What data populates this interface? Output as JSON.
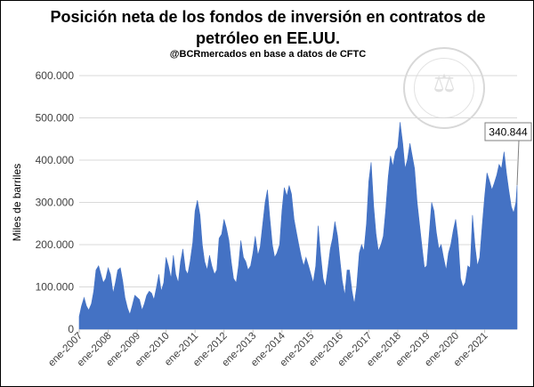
{
  "header": {
    "title_line1": "Posición neta de los fondos de inversión en contratos de",
    "title_line2": "petróleo en EE.UU.",
    "subtitle": "@BCRmercados  en base a datos de CFTC",
    "watermark_text": "BOLSA DE COMERCIO DE ROSARIO"
  },
  "colors": {
    "area": "#4472c4",
    "grid": "#d9d9d9",
    "text": "#404040",
    "callout_border": "#7f7f7f"
  },
  "chart_data": {
    "type": "area",
    "title": "Posición neta de los fondos de inversión en contratos de petróleo en EE.UU.",
    "subtitle": "@BCRmercados  en base a datos de CFTC",
    "ylabel": "Miles de barriles",
    "xlabel": "",
    "ylim": [
      0,
      600000
    ],
    "yticks": [
      0,
      100000,
      200000,
      300000,
      400000,
      500000,
      600000
    ],
    "ytick_labels": [
      "0",
      "100.000",
      "200.000",
      "300.000",
      "400.000",
      "500.000",
      "600.000"
    ],
    "xlim": [
      2007,
      2022.12
    ],
    "xticks": [
      2007,
      2008,
      2009,
      2010,
      2011,
      2012,
      2013,
      2014,
      2015,
      2016,
      2017,
      2018,
      2019,
      2020,
      2021
    ],
    "xtick_labels": [
      "ene-2007",
      "ene-2008",
      "ene-2009",
      "ene-2010",
      "ene-2011",
      "ene-2012",
      "ene-2013",
      "ene-2014",
      "ene-2015",
      "ene-2016",
      "ene-2017",
      "ene-2018",
      "ene-2019",
      "ene-2020",
      "ene-2021"
    ],
    "grid": true,
    "annotation": {
      "label": "340.844",
      "x": 2022.12,
      "y": 340844
    },
    "series": [
      {
        "x": [
          2007.0,
          2007.08,
          2007.17,
          2007.25,
          2007.33,
          2007.42,
          2007.5,
          2007.58,
          2007.67,
          2007.75,
          2007.83,
          2007.92,
          2008.0,
          2008.08,
          2008.17,
          2008.25,
          2008.33,
          2008.42,
          2008.5,
          2008.58,
          2008.67,
          2008.75,
          2008.83,
          2008.92,
          2009.0,
          2009.08,
          2009.17,
          2009.25,
          2009.33,
          2009.42,
          2009.5,
          2009.58,
          2009.67,
          2009.75,
          2009.83,
          2009.92,
          2010.0,
          2010.08,
          2010.17,
          2010.25,
          2010.33,
          2010.42,
          2010.5,
          2010.58,
          2010.67,
          2010.75,
          2010.83,
          2010.92,
          2011.0,
          2011.08,
          2011.17,
          2011.25,
          2011.33,
          2011.42,
          2011.5,
          2011.58,
          2011.67,
          2011.75,
          2011.83,
          2011.92,
          2012.0,
          2012.08,
          2012.17,
          2012.25,
          2012.33,
          2012.42,
          2012.5,
          2012.58,
          2012.67,
          2012.75,
          2012.83,
          2012.92,
          2013.0,
          2013.08,
          2013.17,
          2013.25,
          2013.33,
          2013.42,
          2013.5,
          2013.58,
          2013.67,
          2013.75,
          2013.83,
          2013.92,
          2014.0,
          2014.08,
          2014.17,
          2014.25,
          2014.33,
          2014.42,
          2014.5,
          2014.58,
          2014.67,
          2014.75,
          2014.83,
          2014.92,
          2015.0,
          2015.08,
          2015.17,
          2015.25,
          2015.33,
          2015.42,
          2015.5,
          2015.58,
          2015.67,
          2015.75,
          2015.83,
          2015.92,
          2016.0,
          2016.08,
          2016.17,
          2016.25,
          2016.33,
          2016.42,
          2016.5,
          2016.58,
          2016.67,
          2016.75,
          2016.83,
          2016.92,
          2017.0,
          2017.08,
          2017.17,
          2017.25,
          2017.33,
          2017.42,
          2017.5,
          2017.58,
          2017.67,
          2017.75,
          2017.83,
          2017.92,
          2018.0,
          2018.08,
          2018.17,
          2018.25,
          2018.33,
          2018.42,
          2018.5,
          2018.58,
          2018.67,
          2018.75,
          2018.83,
          2018.92,
          2019.0,
          2019.08,
          2019.17,
          2019.25,
          2019.33,
          2019.42,
          2019.5,
          2019.58,
          2019.67,
          2019.75,
          2019.83,
          2019.92,
          2020.0,
          2020.08,
          2020.17,
          2020.25,
          2020.33,
          2020.42,
          2020.5,
          2020.58,
          2020.67,
          2020.75,
          2020.83,
          2020.92,
          2021.0,
          2021.08,
          2021.17,
          2021.25,
          2021.33,
          2021.42,
          2021.5,
          2021.58,
          2021.67,
          2021.75,
          2021.83,
          2021.92,
          2022.0,
          2022.08,
          2022.12
        ],
        "values": [
          30000,
          55000,
          75000,
          55000,
          45000,
          60000,
          90000,
          140000,
          150000,
          130000,
          110000,
          120000,
          145000,
          130000,
          85000,
          110000,
          140000,
          145000,
          115000,
          75000,
          50000,
          35000,
          55000,
          80000,
          75000,
          70000,
          45000,
          60000,
          80000,
          90000,
          85000,
          70000,
          100000,
          130000,
          90000,
          110000,
          170000,
          150000,
          120000,
          175000,
          130000,
          110000,
          160000,
          190000,
          140000,
          130000,
          160000,
          205000,
          280000,
          305000,
          270000,
          200000,
          160000,
          140000,
          175000,
          150000,
          130000,
          140000,
          215000,
          225000,
          260000,
          240000,
          210000,
          160000,
          120000,
          110000,
          150000,
          210000,
          170000,
          160000,
          140000,
          150000,
          180000,
          220000,
          175000,
          195000,
          245000,
          300000,
          330000,
          265000,
          200000,
          170000,
          180000,
          200000,
          280000,
          335000,
          315000,
          340000,
          320000,
          260000,
          230000,
          200000,
          170000,
          150000,
          170000,
          150000,
          130000,
          110000,
          150000,
          245000,
          180000,
          120000,
          100000,
          140000,
          190000,
          215000,
          255000,
          220000,
          165000,
          115000,
          80000,
          140000,
          140000,
          90000,
          60000,
          100000,
          180000,
          200000,
          185000,
          250000,
          350000,
          395000,
          290000,
          225000,
          185000,
          200000,
          220000,
          280000,
          360000,
          410000,
          385000,
          420000,
          430000,
          490000,
          440000,
          380000,
          400000,
          440000,
          410000,
          380000,
          300000,
          250000,
          200000,
          145000,
          150000,
          220000,
          300000,
          280000,
          230000,
          190000,
          200000,
          170000,
          140000,
          180000,
          200000,
          235000,
          260000,
          215000,
          120000,
          100000,
          110000,
          150000,
          145000,
          270000,
          195000,
          150000,
          170000,
          250000,
          315000,
          370000,
          350000,
          330000,
          345000,
          365000,
          390000,
          380000,
          420000,
          370000,
          330000,
          290000,
          275000,
          300000,
          340844
        ]
      }
    ]
  }
}
